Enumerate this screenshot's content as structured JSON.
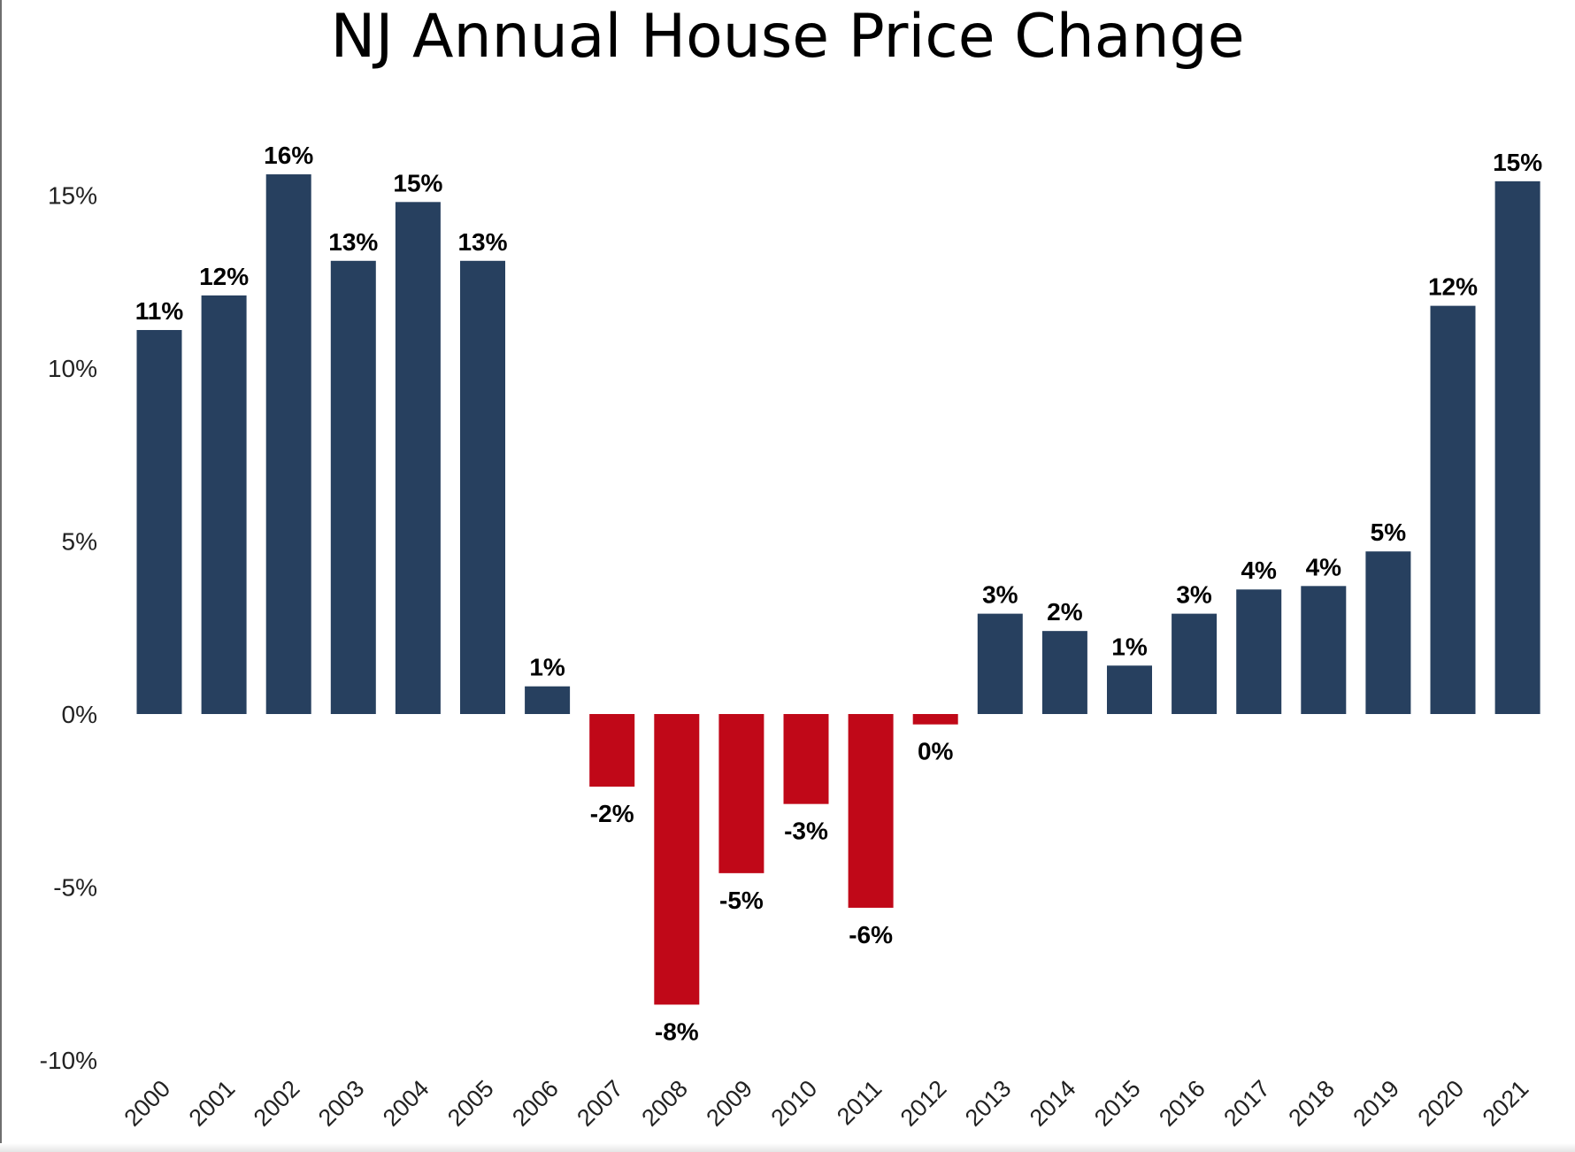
{
  "chart_data": {
    "type": "bar",
    "title": "NJ Annual House Price Change",
    "xlabel": "",
    "ylabel": "",
    "categories": [
      "2000",
      "2001",
      "2002",
      "2003",
      "2004",
      "2005",
      "2006",
      "2007",
      "2008",
      "2009",
      "2010",
      "2011",
      "2012",
      "2013",
      "2014",
      "2015",
      "2016",
      "2017",
      "2018",
      "2019",
      "2020",
      "2021"
    ],
    "values": [
      11.1,
      12.1,
      15.6,
      13.1,
      14.8,
      13.1,
      0.8,
      -2.1,
      -8.4,
      -4.6,
      -2.6,
      -5.6,
      -0.3,
      2.9,
      2.4,
      1.4,
      2.9,
      3.6,
      3.7,
      4.7,
      11.8,
      15.4
    ],
    "data_labels": [
      "11%",
      "12%",
      "16%",
      "13%",
      "15%",
      "13%",
      "1%",
      "-2%",
      "-8%",
      "-5%",
      "-3%",
      "-6%",
      "0%",
      "3%",
      "2%",
      "1%",
      "3%",
      "4%",
      "4%",
      "5%",
      "12%",
      "15%"
    ],
    "y_ticks": [
      -10,
      -5,
      0,
      5,
      10,
      15
    ],
    "y_tick_labels": [
      "-10%",
      "-5%",
      "0%",
      "5%",
      "10%",
      "15%"
    ],
    "ylim": [
      -10,
      16.5
    ],
    "grid": false,
    "legend": "none",
    "colors": {
      "positive": "#27405f",
      "negative": "#c00818"
    }
  }
}
